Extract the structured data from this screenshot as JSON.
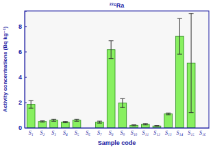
{
  "chart_data": {
    "type": "bar",
    "title": "²²⁶Ra",
    "x_label": "Sample code",
    "y_label": "Activity concentrations (Bq kg⁻¹)",
    "categories": [
      "S₁",
      "S₂",
      "S₃",
      "S₄",
      "S₅",
      "S₆",
      "S₇",
      "S₈",
      "S₉",
      "S₁₀",
      "S₁₁",
      "S₁₂",
      "S₁₃",
      "S₁₄",
      "S₁₅",
      "S₁₆"
    ],
    "values": [
      1.85,
      0.5,
      0.6,
      0.45,
      0.6,
      0,
      0.45,
      6.15,
      1.95,
      0.2,
      0.28,
      0.15,
      1.1,
      7.2,
      5.1,
      0
    ],
    "errors": [
      0.3,
      0.05,
      0.08,
      0.05,
      0.08,
      0,
      0.08,
      0.7,
      0.35,
      0.04,
      0.05,
      0.03,
      0.07,
      1.4,
      3.9,
      0
    ],
    "color": "#88f060",
    "ylim": [
      0,
      9.2
    ],
    "yticks": [
      0,
      2,
      4,
      6,
      8
    ],
    "grid": false
  }
}
